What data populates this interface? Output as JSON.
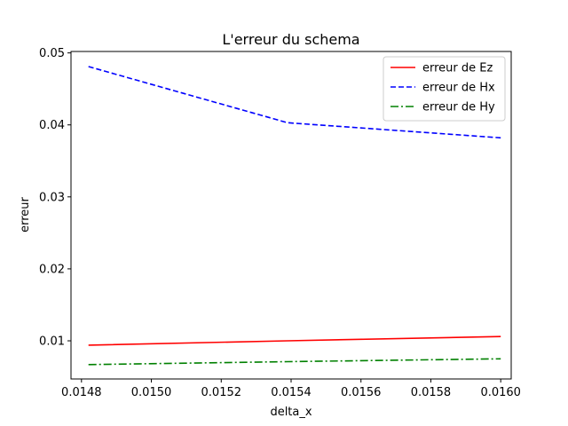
{
  "chart_data": {
    "type": "line",
    "title": "L'erreur du schema",
    "xlabel": "delta_x",
    "ylabel": "erreur",
    "xlim": [
      0.01477,
      0.01603
    ],
    "ylim": [
      0.0047,
      0.0502
    ],
    "xticks": [
      0.0148,
      0.015,
      0.0152,
      0.0154,
      0.0156,
      0.0158,
      0.016
    ],
    "xtick_labels": [
      "0.0148",
      "0.0150",
      "0.0152",
      "0.0154",
      "0.0156",
      "0.0158",
      "0.0160"
    ],
    "yticks": [
      0.01,
      0.02,
      0.03,
      0.04,
      0.05
    ],
    "ytick_labels": [
      "0.01",
      "0.02",
      "0.03",
      "0.04",
      "0.05"
    ],
    "grid": false,
    "legend_position": "top-right",
    "series": [
      {
        "name": "erreur de Ez",
        "color": "#ff0000",
        "dash": "solid",
        "x": [
          0.01482,
          0.01539,
          0.016
        ],
        "y": [
          0.0094,
          0.01,
          0.0106
        ]
      },
      {
        "name": "erreur de Hx",
        "color": "#0000ff",
        "dash": "dashed",
        "x": [
          0.01482,
          0.01539,
          0.016
        ],
        "y": [
          0.0481,
          0.0403,
          0.0382
        ]
      },
      {
        "name": "erreur de Hy",
        "color": "#008000",
        "dash": "dashdot",
        "x": [
          0.01482,
          0.01539,
          0.016
        ],
        "y": [
          0.0067,
          0.0071,
          0.0075
        ]
      }
    ]
  }
}
